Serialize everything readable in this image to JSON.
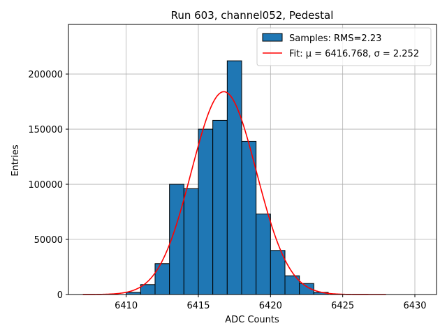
{
  "chart_data": {
    "type": "bar",
    "title": "Run 603, channel052, Pedestal",
    "xlabel": "ADC Counts",
    "ylabel": "Entries",
    "xlim": [
      6406,
      6431.5
    ],
    "ylim": [
      0,
      245000
    ],
    "xticks": [
      6410,
      6415,
      6420,
      6425,
      6430
    ],
    "yticks": [
      0,
      50000,
      100000,
      150000,
      200000
    ],
    "grid": true,
    "legend_position": "top-right",
    "bin_width": 1,
    "histogram": {
      "name": "Samples: RMS=2.23",
      "color": "#1f77b4",
      "bin_starts": [
        6410,
        6411,
        6412,
        6413,
        6414,
        6415,
        6416,
        6417,
        6418,
        6419,
        6420,
        6421,
        6422,
        6423
      ],
      "values": [
        2000,
        9000,
        28000,
        100000,
        96000,
        150000,
        158000,
        212000,
        139000,
        73000,
        40000,
        17000,
        10000,
        2000
      ]
    },
    "fit": {
      "name_prefix": "Fit: ",
      "mu_label": "μ",
      "sigma_label": "σ",
      "mu": 6416.768,
      "sigma": 2.252,
      "amplitude": 184000,
      "x_range": [
        6407,
        6428
      ],
      "color": "#ff0000"
    },
    "legend": [
      {
        "kind": "patch",
        "label": "Samples: RMS=2.23"
      },
      {
        "kind": "line",
        "label": "Fit: μ = 6416.768, σ = 2.252"
      }
    ]
  }
}
